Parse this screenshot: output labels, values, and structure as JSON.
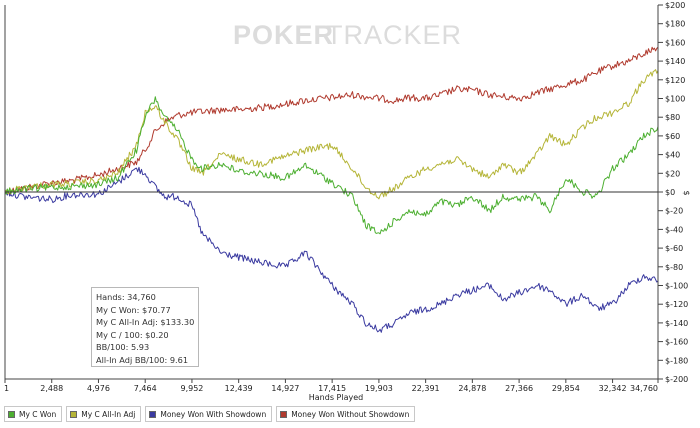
{
  "chart_data": {
    "type": "line",
    "watermark": {
      "brand_bold": "POKER",
      "brand_light": "TRACKER"
    },
    "xlabel": "Hands Played",
    "ylabel": "$",
    "xlim": [
      1,
      34760
    ],
    "ylim": [
      -200,
      200
    ],
    "x_ticks": [
      1,
      2488,
      4976,
      7464,
      9952,
      12439,
      14927,
      17415,
      19903,
      22391,
      24878,
      27366,
      29854,
      32342,
      34760
    ],
    "x_tick_labels": [
      "1",
      "2,488",
      "4,976",
      "7,464",
      "9,952",
      "12,439",
      "14,927",
      "17,415",
      "19,903",
      "22,391",
      "24,878",
      "27,366",
      "29,854",
      "32,342",
      "34,760"
    ],
    "y_ticks": [
      -200,
      -180,
      -160,
      -140,
      -120,
      -100,
      -80,
      -60,
      -40,
      -20,
      0,
      20,
      40,
      60,
      80,
      100,
      120,
      140,
      160,
      180,
      200
    ],
    "y_tick_labels": [
      "$-200",
      "$-180",
      "$-160",
      "$-140",
      "$-120",
      "$-100",
      "$-80",
      "$-60",
      "$-40",
      "$-20",
      "$0",
      "$20",
      "$40",
      "$60",
      "$80",
      "$100",
      "$120",
      "$140",
      "$160",
      "$180",
      "$200"
    ],
    "grid": false,
    "legend_position": "bottom",
    "series": [
      {
        "name": "My C Won",
        "color": "#4caf30",
        "x": [
          1,
          1000,
          2488,
          3500,
          4976,
          6000,
          7000,
          7464,
          8000,
          8500,
          9200,
          9952,
          10500,
          11500,
          12439,
          13500,
          14927,
          16000,
          17415,
          18500,
          19200,
          19903,
          20800,
          21500,
          22391,
          23200,
          24000,
          24878,
          25800,
          26500,
          27366,
          28300,
          29000,
          29854,
          30800,
          31500,
          32342,
          33200,
          34000,
          34760
        ],
        "y": [
          0,
          3,
          5,
          6,
          8,
          15,
          45,
          80,
          100,
          80,
          65,
          35,
          25,
          30,
          22,
          20,
          15,
          28,
          10,
          -5,
          -35,
          -45,
          -30,
          -20,
          -25,
          -10,
          -15,
          -5,
          -20,
          -5,
          -8,
          -5,
          -20,
          15,
          0,
          -5,
          25,
          40,
          60,
          70
        ]
      },
      {
        "name": "My C All-In Adj",
        "color": "#b5b538",
        "x": [
          1,
          1000,
          2488,
          3500,
          4976,
          6000,
          7000,
          7464,
          8000,
          8500,
          9200,
          9952,
          10500,
          11500,
          12439,
          13500,
          14927,
          16000,
          17415,
          18500,
          19200,
          19903,
          20800,
          21500,
          22391,
          23200,
          24000,
          24878,
          25800,
          26500,
          27366,
          28300,
          29000,
          29854,
          30800,
          31500,
          32342,
          33200,
          34000,
          34760
        ],
        "y": [
          0,
          5,
          8,
          9,
          12,
          20,
          50,
          85,
          92,
          75,
          55,
          25,
          20,
          40,
          35,
          30,
          38,
          45,
          50,
          25,
          5,
          -5,
          5,
          15,
          25,
          30,
          35,
          25,
          15,
          30,
          20,
          40,
          60,
          50,
          70,
          80,
          85,
          95,
          120,
          130
        ]
      },
      {
        "name": "Money Won With Showdown",
        "color": "#3a3aa0",
        "x": [
          1,
          1000,
          2488,
          3500,
          4976,
          6000,
          7000,
          7464,
          8000,
          8500,
          9200,
          9952,
          10500,
          11500,
          12439,
          13500,
          14927,
          16000,
          17415,
          18500,
          19200,
          19903,
          20800,
          21500,
          22391,
          23200,
          24000,
          24878,
          25800,
          26500,
          27366,
          28300,
          29000,
          29854,
          30800,
          31500,
          32342,
          33200,
          34000,
          34760
        ],
        "y": [
          0,
          -5,
          -8,
          -3,
          -2,
          10,
          25,
          20,
          5,
          -5,
          -5,
          -15,
          -45,
          -65,
          -70,
          -75,
          -80,
          -65,
          -100,
          -120,
          -140,
          -148,
          -140,
          -130,
          -125,
          -120,
          -110,
          -105,
          -100,
          -115,
          -108,
          -100,
          -105,
          -120,
          -110,
          -125,
          -120,
          -100,
          -90,
          -95
        ]
      },
      {
        "name": "Money Won Without Showdown",
        "color": "#b03a2e",
        "x": [
          1,
          1000,
          2488,
          3500,
          4976,
          6000,
          7000,
          7464,
          8000,
          8500,
          9200,
          9952,
          10500,
          11500,
          12439,
          13500,
          14927,
          16000,
          17415,
          18500,
          19200,
          19903,
          20800,
          21500,
          22391,
          23200,
          24000,
          24878,
          25800,
          26500,
          27366,
          28300,
          29000,
          29854,
          30800,
          31500,
          32342,
          33200,
          34000,
          34760
        ],
        "y": [
          0,
          4,
          10,
          12,
          18,
          25,
          32,
          45,
          65,
          75,
          82,
          85,
          86,
          88,
          88,
          90,
          94,
          98,
          101,
          104,
          102,
          100,
          98,
          101,
          100,
          104,
          110,
          109,
          104,
          102,
          100,
          106,
          110,
          115,
          120,
          128,
          135,
          140,
          148,
          155
        ]
      }
    ]
  },
  "stats_box": {
    "hands": "Hands: 34,760",
    "won": "My C Won: $70.77",
    "allin_adj": "My C All-In Adj: $133.30",
    "per100": "My C / 100: $0.20",
    "bb100": "BB/100: 5.93",
    "allin_bb100": "All-In Adj BB/100: 9.61"
  }
}
